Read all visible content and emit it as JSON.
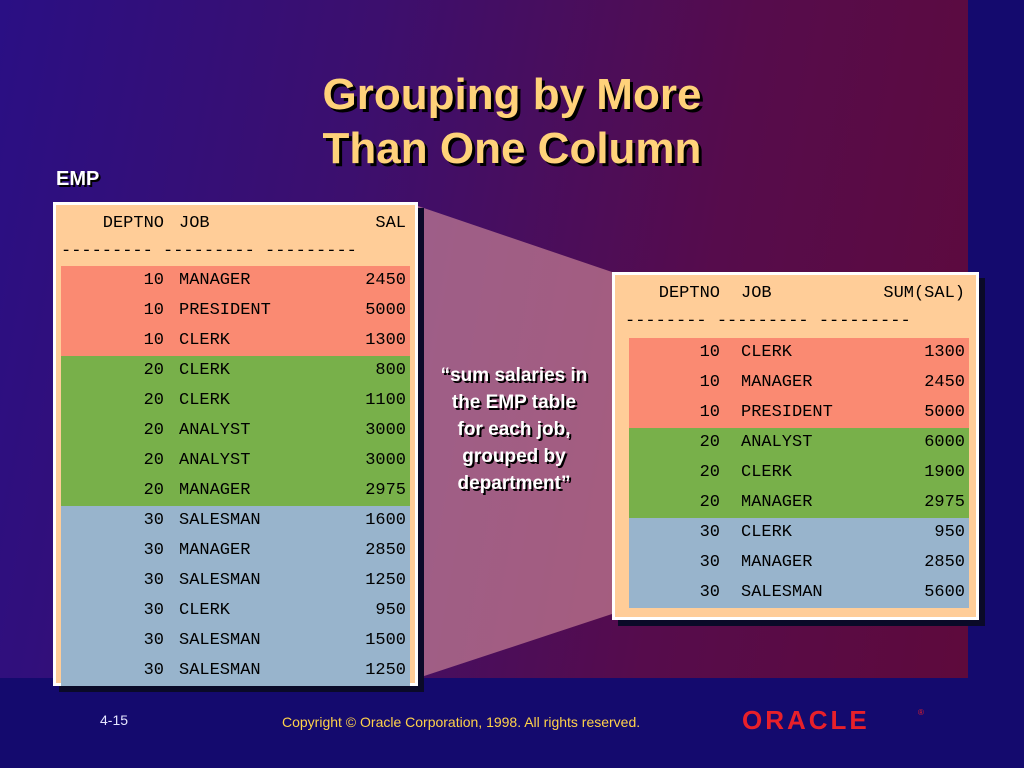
{
  "title_line1": "Grouping by More",
  "title_line2": "Than One Column",
  "emp_label": "EMP",
  "left_table": {
    "headers": [
      "DEPTNO",
      "JOB",
      "SAL"
    ],
    "dashes": "--------- --------- ---------",
    "groups": [
      {
        "color": "#fa8a72",
        "rows": [
          [
            "10",
            "MANAGER",
            "2450"
          ],
          [
            "10",
            "PRESIDENT",
            "5000"
          ],
          [
            "10",
            "CLERK",
            "1300"
          ]
        ]
      },
      {
        "color": "#78b04a",
        "rows": [
          [
            "20",
            "CLERK",
            "800"
          ],
          [
            "20",
            "CLERK",
            "1100"
          ],
          [
            "20",
            "ANALYST",
            "3000"
          ],
          [
            "20",
            "ANALYST",
            "3000"
          ],
          [
            "20",
            "MANAGER",
            "2975"
          ]
        ]
      },
      {
        "color": "#98b4cc",
        "rows": [
          [
            "30",
            "SALESMAN",
            "1600"
          ],
          [
            "30",
            "MANAGER",
            "2850"
          ],
          [
            "30",
            "SALESMAN",
            "1250"
          ],
          [
            "30",
            "CLERK",
            "950"
          ],
          [
            "30",
            "SALESMAN",
            "1500"
          ],
          [
            "30",
            "SALESMAN",
            "1250"
          ]
        ]
      }
    ]
  },
  "right_table": {
    "headers": [
      "DEPTNO",
      "JOB",
      "SUM(SAL)"
    ],
    "dashes": "-------- --------- ---------",
    "groups": [
      {
        "color": "#fa8a72",
        "rows": [
          [
            "10",
            "CLERK",
            "1300"
          ],
          [
            "10",
            "MANAGER",
            "2450"
          ],
          [
            "10",
            "PRESIDENT",
            "5000"
          ]
        ]
      },
      {
        "color": "#78b04a",
        "rows": [
          [
            "20",
            "ANALYST",
            "6000"
          ],
          [
            "20",
            "CLERK",
            "1900"
          ],
          [
            "20",
            "MANAGER",
            "2975"
          ]
        ]
      },
      {
        "color": "#98b4cc",
        "rows": [
          [
            "30",
            "CLERK",
            "950"
          ],
          [
            "30",
            "MANAGER",
            "2850"
          ],
          [
            "30",
            "SALESMAN",
            "5600"
          ]
        ]
      }
    ]
  },
  "callout_lines": [
    "“sum salaries in",
    "the EMP table",
    "for each job,",
    "grouped by",
    "department”"
  ],
  "footer": {
    "page_number": "4-15",
    "copyright": "Copyright © Oracle Corporation, 1998. All rights reserved.",
    "logo_text": "ORACLE"
  },
  "colors": {
    "title": "#ffd27a",
    "panel": "#ffcd98",
    "dept10": "#fa8a72",
    "dept20": "#78b04a",
    "dept30": "#98b4cc",
    "logo": "#e8202a",
    "copyright": "#ffd24a"
  }
}
